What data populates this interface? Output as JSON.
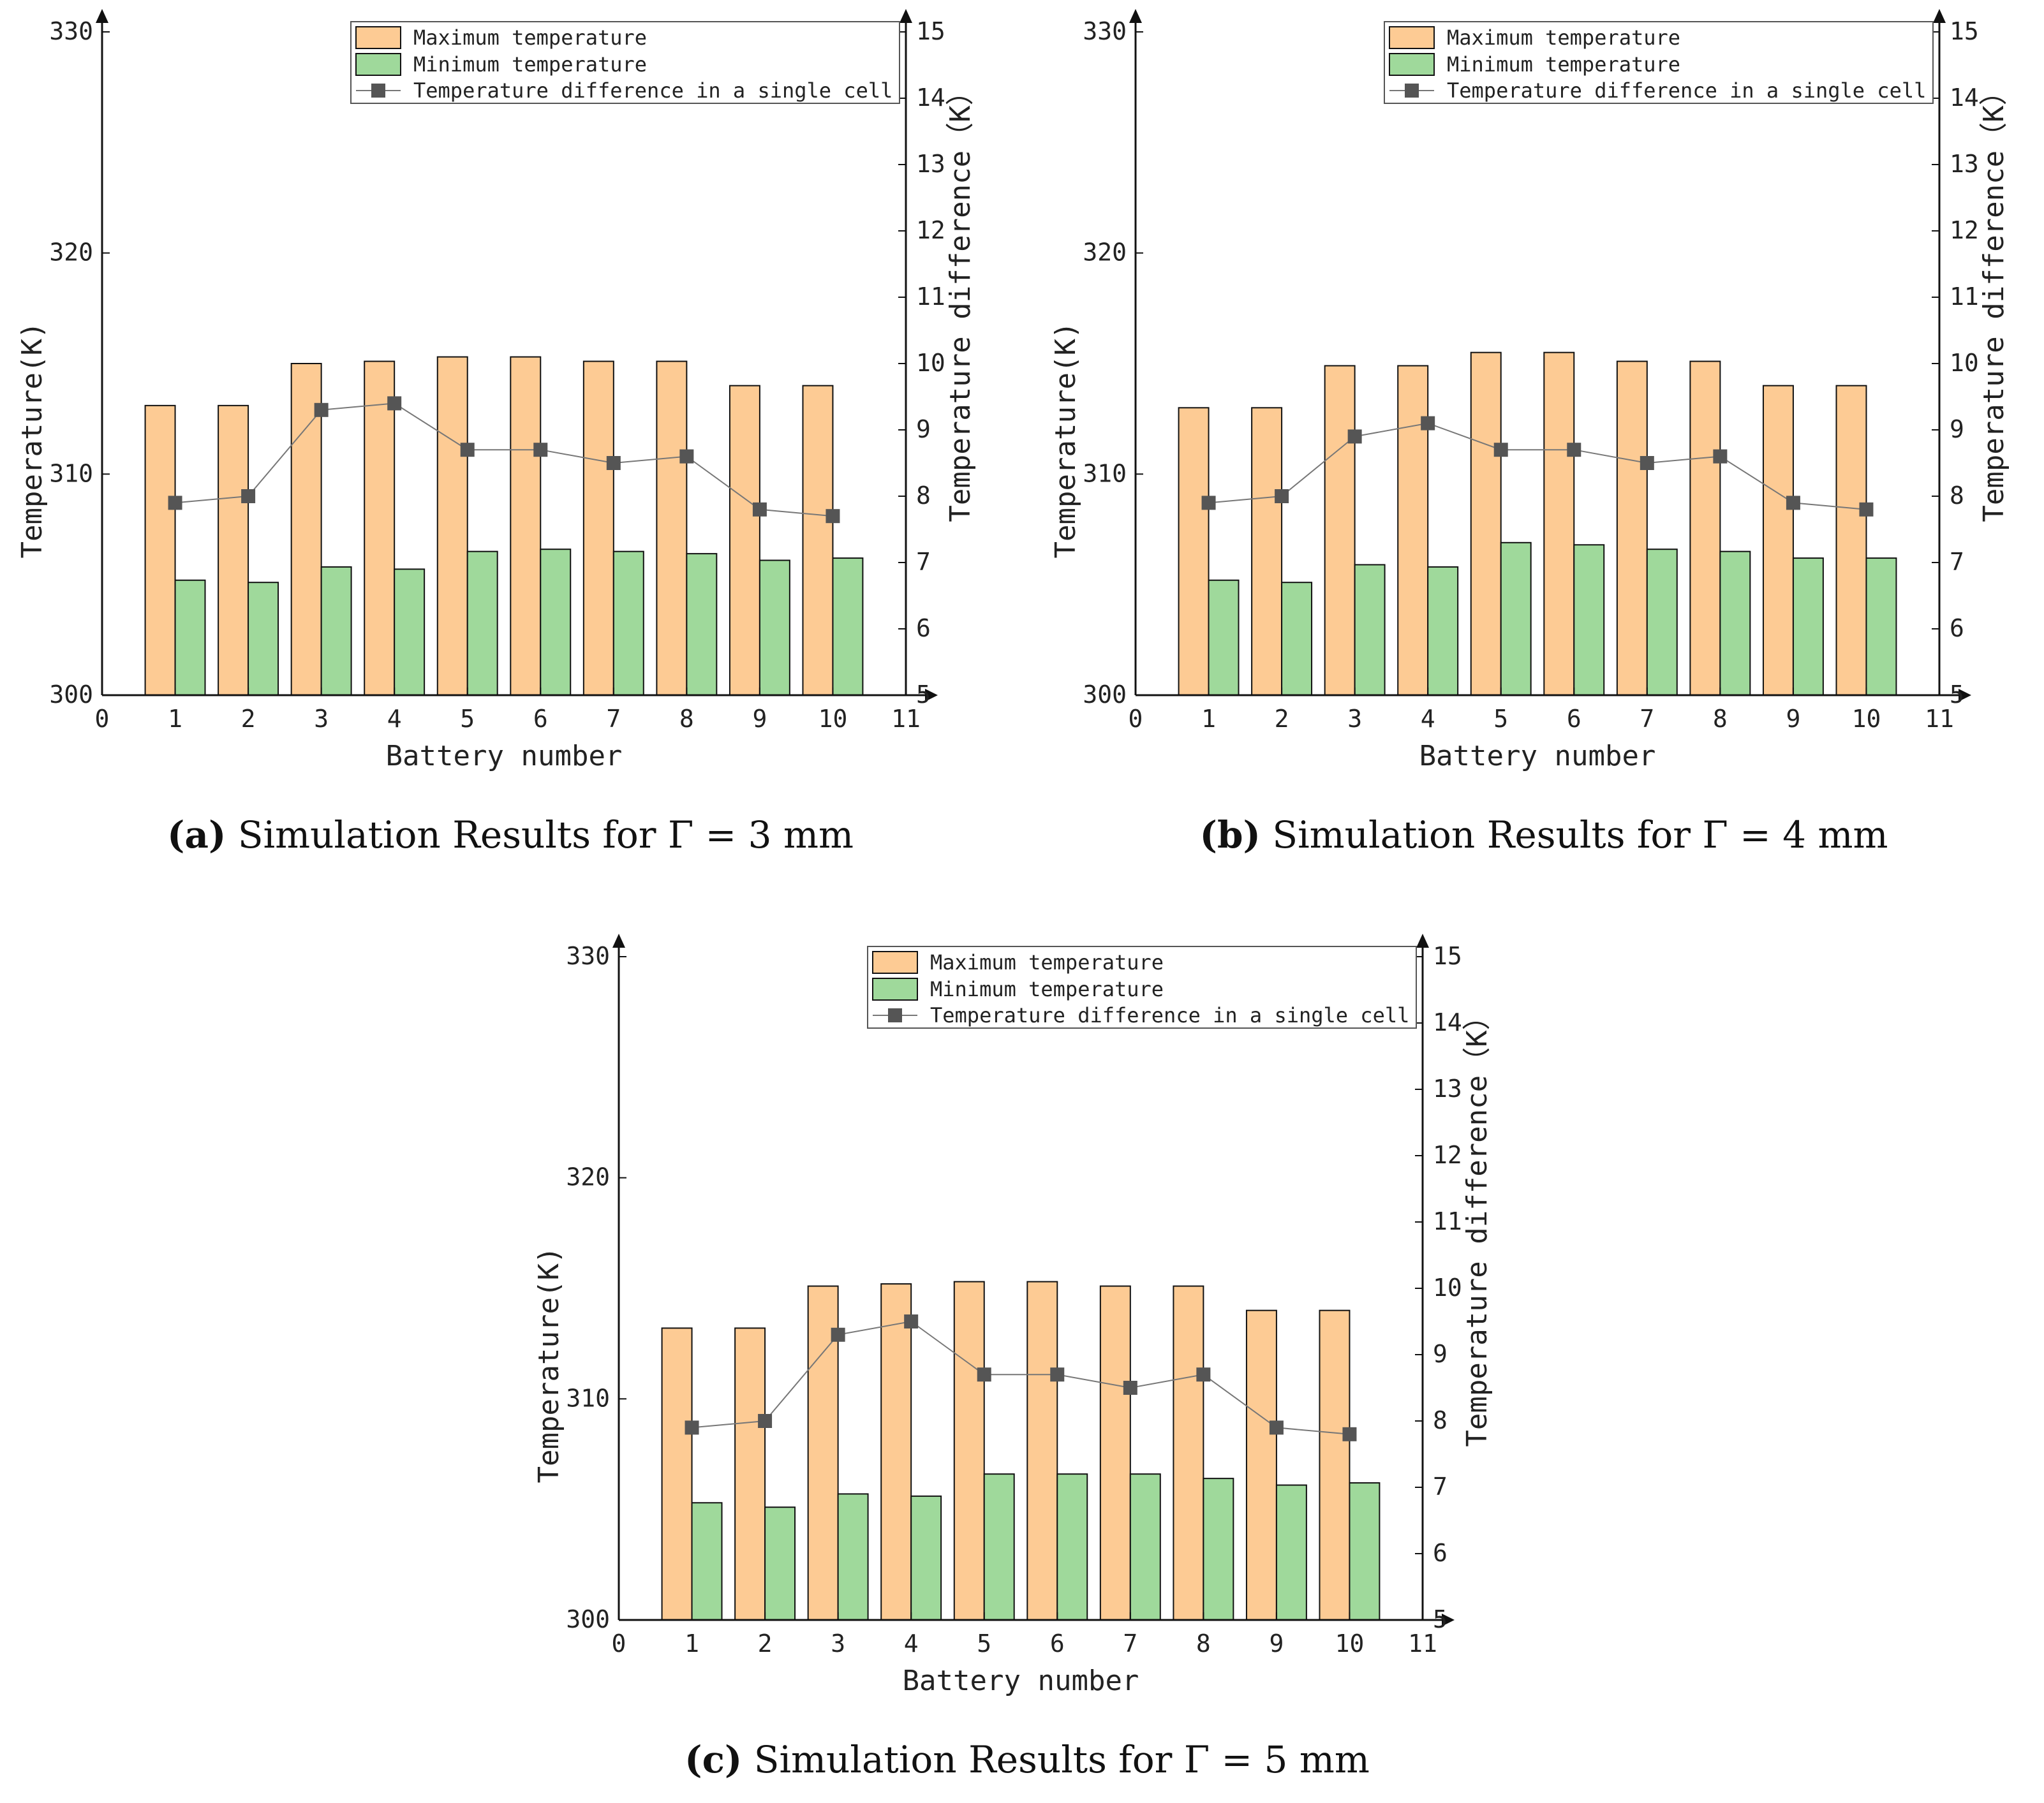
{
  "chart_data": [
    {
      "type": "bar",
      "caption_label": "(a)",
      "caption_text": "Simulation Results for Γ = 3 mm",
      "categories": [
        "1",
        "2",
        "3",
        "4",
        "5",
        "6",
        "7",
        "8",
        "9",
        "10"
      ],
      "xlabel": "Battery number",
      "ylabel": "Temperature(K)",
      "y2label": "Temperature difference（K）",
      "xlim": [
        0,
        11
      ],
      "ylim": [
        300,
        330
      ],
      "y2lim": [
        5,
        15
      ],
      "xticks": [
        "0",
        "1",
        "2",
        "3",
        "4",
        "5",
        "6",
        "7",
        "8",
        "9",
        "10",
        "11"
      ],
      "yticks": [
        "300",
        "310",
        "320",
        "330"
      ],
      "y2ticks": [
        "5",
        "6",
        "7",
        "8",
        "9",
        "10",
        "11",
        "12",
        "13",
        "14",
        "15"
      ],
      "legend": [
        "Maximum temperature",
        "Minimum temperature",
        "Temperature difference in a single cell"
      ],
      "legend_position": "top-right",
      "series": [
        {
          "name": "Maximum temperature",
          "type": "bar",
          "color": "#fdcb94",
          "values": [
            313.1,
            313.1,
            315.0,
            315.1,
            315.3,
            315.3,
            315.1,
            315.1,
            314.0,
            314.0
          ]
        },
        {
          "name": "Minimum temperature",
          "type": "bar",
          "color": "#9fd99b",
          "values": [
            305.2,
            305.1,
            305.8,
            305.7,
            306.5,
            306.6,
            306.5,
            306.4,
            306.1,
            306.2
          ]
        },
        {
          "name": "Temperature difference in a single cell",
          "type": "line",
          "axis": "right",
          "color": "#555555",
          "values": [
            7.9,
            8.0,
            9.3,
            9.4,
            8.7,
            8.7,
            8.5,
            8.6,
            7.8,
            7.7
          ]
        }
      ]
    },
    {
      "type": "bar",
      "caption_label": "(b)",
      "caption_text": "Simulation Results for Γ = 4 mm",
      "categories": [
        "1",
        "2",
        "3",
        "4",
        "5",
        "6",
        "7",
        "8",
        "9",
        "10"
      ],
      "xlabel": "Battery number",
      "ylabel": "Temperature(K)",
      "y2label": "Temperature difference（K）",
      "xlim": [
        0,
        11
      ],
      "ylim": [
        300,
        330
      ],
      "y2lim": [
        5,
        15
      ],
      "xticks": [
        "0",
        "1",
        "2",
        "3",
        "4",
        "5",
        "6",
        "7",
        "8",
        "9",
        "10",
        "11"
      ],
      "yticks": [
        "300",
        "310",
        "320",
        "330"
      ],
      "y2ticks": [
        "5",
        "6",
        "7",
        "8",
        "9",
        "10",
        "11",
        "12",
        "13",
        "14",
        "15"
      ],
      "legend": [
        "Maximum temperature",
        "Minimum temperature",
        "Temperature difference in a single cell"
      ],
      "legend_position": "top-right",
      "series": [
        {
          "name": "Maximum temperature",
          "type": "bar",
          "color": "#fdcb94",
          "values": [
            313.0,
            313.0,
            314.9,
            314.9,
            315.5,
            315.5,
            315.1,
            315.1,
            314.0,
            314.0
          ]
        },
        {
          "name": "Minimum temperature",
          "type": "bar",
          "color": "#9fd99b",
          "values": [
            305.2,
            305.1,
            305.9,
            305.8,
            306.9,
            306.8,
            306.6,
            306.5,
            306.2,
            306.2
          ]
        },
        {
          "name": "Temperature difference in a single cell",
          "type": "line",
          "axis": "right",
          "color": "#555555",
          "values": [
            7.9,
            8.0,
            8.9,
            9.1,
            8.7,
            8.7,
            8.5,
            8.6,
            7.9,
            7.8
          ]
        }
      ]
    },
    {
      "type": "bar",
      "caption_label": "(c)",
      "caption_text": "Simulation Results for Γ = 5 mm",
      "categories": [
        "1",
        "2",
        "3",
        "4",
        "5",
        "6",
        "7",
        "8",
        "9",
        "10"
      ],
      "xlabel": "Battery number",
      "ylabel": "Temperature(K)",
      "y2label": "Temperature difference（K）",
      "xlim": [
        0,
        11
      ],
      "ylim": [
        300,
        330
      ],
      "y2lim": [
        5,
        15
      ],
      "xticks": [
        "0",
        "1",
        "2",
        "3",
        "4",
        "5",
        "6",
        "7",
        "8",
        "9",
        "10",
        "11"
      ],
      "yticks": [
        "300",
        "310",
        "320",
        "330"
      ],
      "y2ticks": [
        "5",
        "6",
        "7",
        "8",
        "9",
        "10",
        "11",
        "12",
        "13",
        "14",
        "15"
      ],
      "legend": [
        "Maximum temperature",
        "Minimum temperature",
        "Temperature difference in a single cell"
      ],
      "legend_position": "top-right",
      "series": [
        {
          "name": "Maximum temperature",
          "type": "bar",
          "color": "#fdcb94",
          "values": [
            313.2,
            313.2,
            315.1,
            315.2,
            315.3,
            315.3,
            315.1,
            315.1,
            314.0,
            314.0
          ]
        },
        {
          "name": "Minimum temperature",
          "type": "bar",
          "color": "#9fd99b",
          "values": [
            305.3,
            305.1,
            305.7,
            305.6,
            306.6,
            306.6,
            306.6,
            306.4,
            306.1,
            306.2
          ]
        },
        {
          "name": "Temperature difference in a single cell",
          "type": "line",
          "axis": "right",
          "color": "#555555",
          "values": [
            7.9,
            8.0,
            9.3,
            9.5,
            8.7,
            8.7,
            8.5,
            8.7,
            7.9,
            7.8
          ]
        }
      ]
    }
  ]
}
